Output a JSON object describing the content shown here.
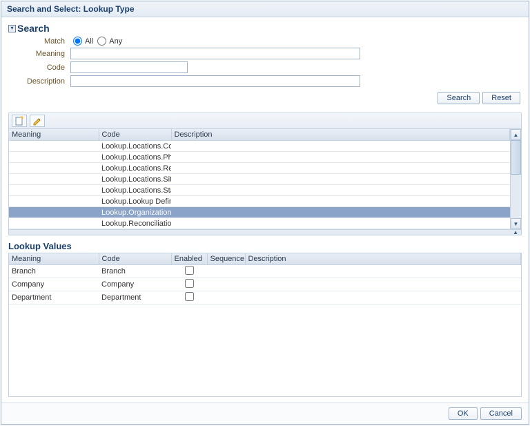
{
  "dialog": {
    "title": "Search and Select: Lookup Type"
  },
  "search": {
    "heading": "Search",
    "match_label": "Match",
    "option_all": "All",
    "option_any": "Any",
    "selected": "all",
    "fields": {
      "meaning_label": "Meaning",
      "meaning_value": "",
      "code_label": "Code",
      "code_value": "",
      "description_label": "Description",
      "description_value": ""
    },
    "buttons": {
      "search": "Search",
      "reset": "Reset"
    }
  },
  "results": {
    "columns": {
      "meaning": "Meaning",
      "code": "Code",
      "description": "Description"
    },
    "col_widths": {
      "meaning": 130,
      "code": 105,
      "description": 500
    },
    "rows": [
      {
        "meaning": "",
        "code": "Lookup.Locations.Cou",
        "description": ""
      },
      {
        "meaning": "",
        "code": "Lookup.Locations.Pho",
        "description": ""
      },
      {
        "meaning": "",
        "code": "Lookup.Locations.Reg",
        "description": ""
      },
      {
        "meaning": "",
        "code": "Lookup.Locations.Sit",
        "description": ""
      },
      {
        "meaning": "",
        "code": "Lookup.Locations.Sta",
        "description": ""
      },
      {
        "meaning": "",
        "code": "Lookup.Lookup Defini",
        "description": ""
      },
      {
        "meaning": "",
        "code": "Lookup.Organization.",
        "description": "",
        "selected": true
      },
      {
        "meaning": "",
        "code": "Lookup.Reconciliation",
        "description": ""
      }
    ]
  },
  "lookup_values": {
    "heading": "Lookup Values",
    "columns": {
      "meaning": "Meaning",
      "code": "Code",
      "enabled": "Enabled",
      "sequence": "Sequence",
      "description": "Description"
    },
    "col_widths": {
      "meaning": 130,
      "code": 105,
      "enabled": 52,
      "sequence": 55,
      "description": 390
    },
    "rows": [
      {
        "meaning": "Branch",
        "code": "Branch",
        "enabled": false,
        "sequence": "",
        "description": ""
      },
      {
        "meaning": "Company",
        "code": "Company",
        "enabled": false,
        "sequence": "",
        "description": ""
      },
      {
        "meaning": "Department",
        "code": "Department",
        "enabled": false,
        "sequence": "",
        "description": ""
      }
    ]
  },
  "footer": {
    "ok": "OK",
    "cancel": "Cancel"
  },
  "colors": {
    "header_text": "#1a3f6b",
    "label_text": "#6b5528",
    "border": "#c4d1e0",
    "selected_row": "#8aa3c6"
  }
}
